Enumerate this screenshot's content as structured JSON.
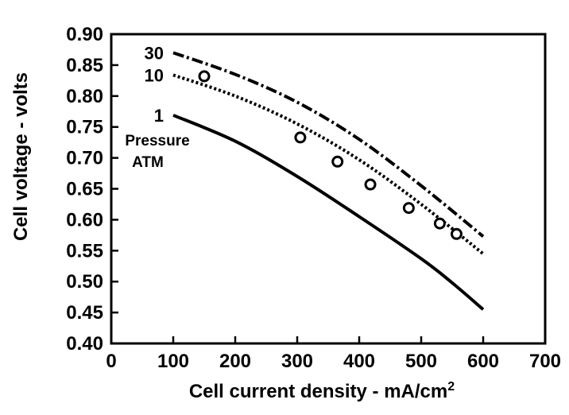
{
  "chart_data": {
    "type": "line",
    "title": "",
    "xlabel": "Cell current density - mA/cm",
    "xlabel_superscript": "2",
    "ylabel": "Cell voltage - volts",
    "xlim": [
      0,
      700
    ],
    "ylim": [
      0.4,
      0.9
    ],
    "x_ticks": [
      "0",
      "100",
      "200",
      "300",
      "400",
      "500",
      "600",
      "700"
    ],
    "y_ticks": [
      "0.40",
      "0.45",
      "0.50",
      "0.55",
      "0.60",
      "0.65",
      "0.70",
      "0.75",
      "0.80",
      "0.85",
      "0.90"
    ],
    "grid": false,
    "series": [
      {
        "name": "30",
        "style": "dash-dot",
        "points": [
          [
            100,
            0.87
          ],
          [
            200,
            0.835
          ],
          [
            300,
            0.79
          ],
          [
            400,
            0.73
          ],
          [
            500,
            0.655
          ],
          [
            600,
            0.573
          ]
        ]
      },
      {
        "name": "10",
        "style": "dotted",
        "points": [
          [
            100,
            0.834
          ],
          [
            200,
            0.8
          ],
          [
            300,
            0.755
          ],
          [
            400,
            0.697
          ],
          [
            500,
            0.625
          ],
          [
            600,
            0.545
          ]
        ]
      },
      {
        "name": "1",
        "style": "solid",
        "points": [
          [
            100,
            0.769
          ],
          [
            200,
            0.727
          ],
          [
            300,
            0.67
          ],
          [
            400,
            0.605
          ],
          [
            500,
            0.537
          ],
          [
            550,
            0.498
          ],
          [
            600,
            0.455
          ]
        ]
      }
    ],
    "markers": {
      "shape": "open-circle",
      "points": [
        [
          150,
          0.832
        ],
        [
          305,
          0.733
        ],
        [
          365,
          0.694
        ],
        [
          418,
          0.657
        ],
        [
          480,
          0.619
        ],
        [
          530,
          0.594
        ],
        [
          557,
          0.577
        ]
      ]
    },
    "annotations": {
      "pressure_label_line1": "Pressure",
      "pressure_label_line2": "ATM"
    }
  }
}
